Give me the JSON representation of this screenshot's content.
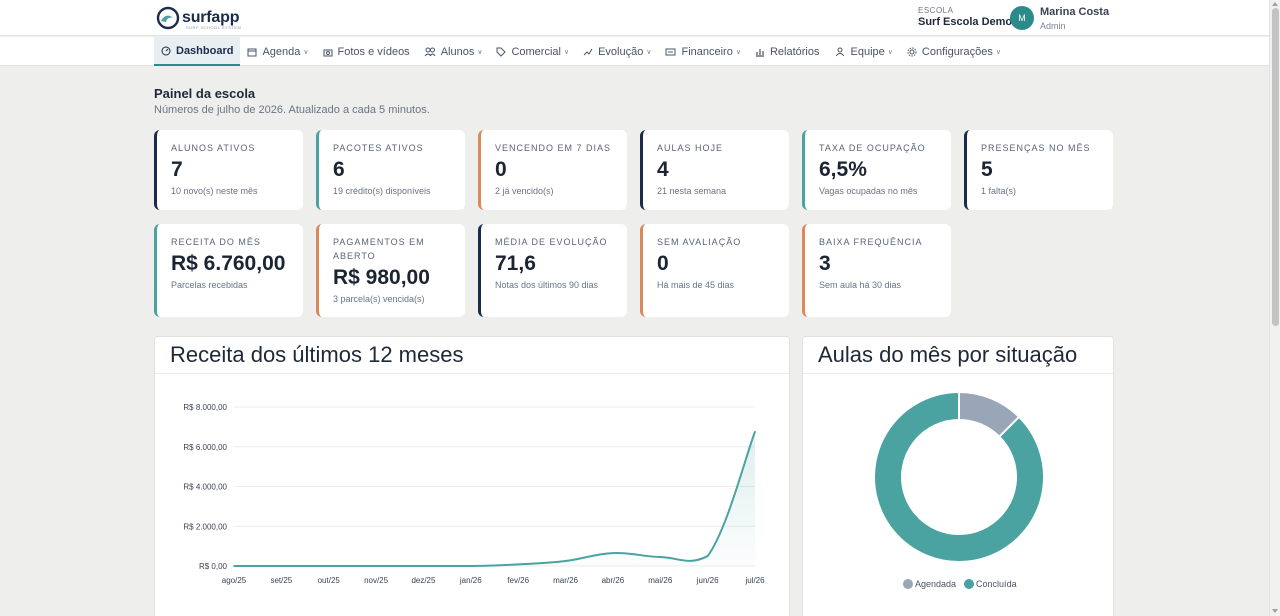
{
  "brand": {
    "name": "surfapp",
    "tagline": "SURF SCHOOL SYSTEM"
  },
  "header": {
    "school_kicker": "ESCOLA",
    "school_name": "Surf Escola Demo",
    "user_initial": "M",
    "user_name": "Marina Costa",
    "user_role": "Admin"
  },
  "nav": [
    {
      "label": "Dashboard",
      "icon": "gauge-icon",
      "dropdown": false,
      "active": true
    },
    {
      "label": "Agenda",
      "icon": "calendar-icon",
      "dropdown": true,
      "active": false
    },
    {
      "label": "Fotos e vídeos",
      "icon": "camera-icon",
      "dropdown": false,
      "active": false
    },
    {
      "label": "Alunos",
      "icon": "users-icon",
      "dropdown": true,
      "active": false
    },
    {
      "label": "Comercial",
      "icon": "tag-icon",
      "dropdown": true,
      "active": false
    },
    {
      "label": "Evolução",
      "icon": "trend-icon",
      "dropdown": true,
      "active": false
    },
    {
      "label": "Financeiro",
      "icon": "money-icon",
      "dropdown": true,
      "active": false
    },
    {
      "label": "Relatórios",
      "icon": "bar-chart-icon",
      "dropdown": false,
      "active": false
    },
    {
      "label": "Equipe",
      "icon": "team-icon",
      "dropdown": true,
      "active": false
    },
    {
      "label": "Configurações",
      "icon": "gear-icon",
      "dropdown": true,
      "active": false
    }
  ],
  "page": {
    "title": "Painel da escola",
    "subtitle": "Números de julho de 2026. Atualizado a cada 5 minutos."
  },
  "cards": [
    {
      "label": "Alunos ativos",
      "value": "7",
      "note": "10 novo(s) neste mês",
      "accent": "#1b2c4a"
    },
    {
      "label": "Pacotes ativos",
      "value": "6",
      "note": "19 crédito(s) disponíveis",
      "accent": "#4aa3a1"
    },
    {
      "label": "Vencendo em 7 dias",
      "value": "0",
      "note": "2 já vencido(s)",
      "accent": "#d9895a"
    },
    {
      "label": "Aulas hoje",
      "value": "4",
      "note": "21 nesta semana",
      "accent": "#1b2c4a"
    },
    {
      "label": "Taxa de ocupação",
      "value": "6,5%",
      "note": "Vagas ocupadas no mês",
      "accent": "#4aa3a1"
    },
    {
      "label": "Presenças no mês",
      "value": "5",
      "note": "1 falta(s)",
      "accent": "#1b2c4a"
    },
    {
      "label": "Receita do mês",
      "value": "R$ 6.760,00",
      "note": "Parcelas recebidas",
      "accent": "#4aa3a1"
    },
    {
      "label": "Pagamentos em aberto",
      "value": "R$ 980,00",
      "note": "3 parcela(s) vencida(s)",
      "accent": "#d9895a"
    },
    {
      "label": "Média de evolução",
      "value": "71,6",
      "note": "Notas dos últimos 90 dias",
      "accent": "#1b2c4a"
    },
    {
      "label": "Sem avaliação",
      "value": "0",
      "note": "Há mais de 45 dias",
      "accent": "#d9895a"
    },
    {
      "label": "Baixa frequência",
      "value": "3",
      "note": "Sem aula há 30 dias",
      "accent": "#d9895a"
    }
  ],
  "panels": {
    "revenue_title": "Receita dos últimos 12 meses",
    "classes_title": "Aulas do mês por situação"
  },
  "colors": {
    "accent": "#4aa3a1",
    "navy": "#1b2c4a",
    "warning": "#d9895a",
    "muted": "#98a6b8"
  },
  "chart_data": [
    {
      "type": "area",
      "title": "Receita dos últimos 12 meses",
      "categories": [
        "ago/25",
        "set/25",
        "out/25",
        "nov/25",
        "dez/25",
        "jan/26",
        "fev/26",
        "mar/26",
        "abr/26",
        "mai/26",
        "jun/26",
        "jul/26"
      ],
      "values": [
        0,
        0,
        0,
        0,
        0,
        0,
        80,
        250,
        650,
        450,
        500,
        6760
      ],
      "ylim": [
        0,
        8000
      ],
      "yticks": [
        0,
        2000,
        4000,
        6000,
        8000
      ],
      "ytick_labels": [
        "R$ 0,00",
        "R$ 2.000,00",
        "R$ 4.000,00",
        "R$ 6.000,00",
        "R$ 8.000,00"
      ],
      "grid": true,
      "color": "#4aa3a1"
    },
    {
      "type": "pie",
      "title": "Aulas do mês por situação",
      "categories": [
        "Agendada",
        "Concluída"
      ],
      "values": [
        1,
        7
      ],
      "colors": [
        "#98a6b8",
        "#4aa3a1"
      ],
      "legend": "bottom"
    }
  ]
}
